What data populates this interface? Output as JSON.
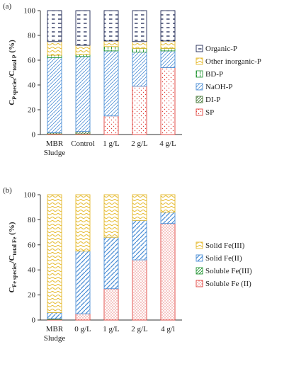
{
  "colors": {
    "organic_p": "#1f2a56",
    "other_inorganic_p": "#e5b92b",
    "bd_p": "#2d9a3c",
    "naoh_p": "#4d8fd6",
    "di_p": "#4a7a3a",
    "sp": "#e0403a",
    "solid_fe3": "#e5b92b",
    "solid_fe2": "#4d8fd6",
    "soluble_fe3": "#2d9a3c",
    "soluble_fe2": "#e0403a"
  },
  "chart_data": [
    {
      "type": "bar",
      "stacked": true,
      "panel_label": "(a)",
      "ylabel_main": "C",
      "ylabel_sub1": "P species",
      "ylabel_mid": "/C",
      "ylabel_sub2": "total P",
      "ylabel_tail": " (%)",
      "ylim": [
        0,
        100
      ],
      "yticks": [
        "0",
        "20",
        "40",
        "60",
        "80",
        "100"
      ],
      "categories": [
        "MBR\nSludge",
        "Control",
        "1 g/L",
        "2 g/L",
        "4 g/L"
      ],
      "series": [
        {
          "name": "SP",
          "color_key": "sp",
          "values": [
            0.5,
            0.5,
            15,
            39,
            54
          ]
        },
        {
          "name": "DI-P",
          "color_key": "di_p",
          "values": [
            1,
            2,
            0,
            0,
            0
          ]
        },
        {
          "name": "NaOH-P",
          "color_key": "naoh_p",
          "values": [
            60.5,
            60.5,
            52.5,
            27.5,
            13.5
          ]
        },
        {
          "name": "BD-P",
          "color_key": "bd_p",
          "values": [
            2,
            1.5,
            3.5,
            3,
            2
          ]
        },
        {
          "name": "Other inorganic-P",
          "color_key": "other_inorganic_p",
          "values": [
            11,
            7.5,
            4.5,
            5.5,
            6
          ]
        },
        {
          "name": "Organic-P",
          "color_key": "organic_p",
          "values": [
            25,
            28,
            24.5,
            25,
            24.5
          ]
        }
      ],
      "legend": [
        "Organic-P",
        "Other inorganic-P",
        "BD-P",
        "NaOH-P",
        "DI-P",
        "SP"
      ],
      "legend_position": "right"
    },
    {
      "type": "bar",
      "stacked": true,
      "panel_label": "(b)",
      "ylabel_main": "C",
      "ylabel_sub1": "Fe species",
      "ylabel_mid": "/C",
      "ylabel_sub2": "total Fe",
      "ylabel_tail": " (%)",
      "ylim": [
        0,
        100
      ],
      "yticks": [
        "0",
        "20",
        "40",
        "60",
        "80",
        "100"
      ],
      "categories": [
        "MBR\nSludge",
        "0 g/L",
        "1 g/L",
        "2 g/L",
        "4 g/l"
      ],
      "series": [
        {
          "name": "Soluble Fe (II)",
          "color_key": "soluble_fe2",
          "values": [
            0.5,
            5,
            25,
            48,
            77
          ]
        },
        {
          "name": "Soluble Fe(III)",
          "color_key": "soluble_fe3",
          "values": [
            0.5,
            0,
            0,
            0,
            0
          ]
        },
        {
          "name": "Solid Fe(II)",
          "color_key": "solid_fe2",
          "values": [
            5,
            50,
            41,
            31.5,
            9
          ]
        },
        {
          "name": "Solid Fe(III)",
          "color_key": "solid_fe3",
          "values": [
            94,
            45,
            34,
            20.5,
            14
          ]
        }
      ],
      "legend": [
        "Solid Fe(III)",
        "Solid Fe(II)",
        "Soluble Fe(III)",
        "Soluble Fe (II)"
      ],
      "legend_position": "right"
    }
  ]
}
